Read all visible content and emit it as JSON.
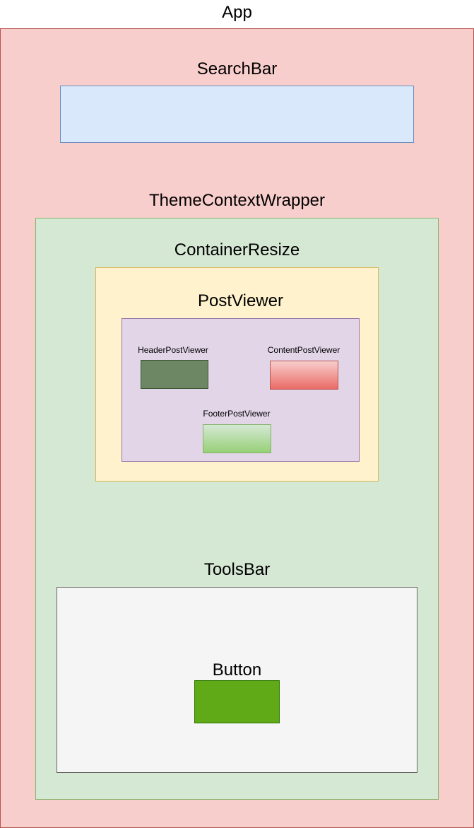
{
  "app": {
    "label": "App"
  },
  "searchbar": {
    "label": "SearchBar"
  },
  "theme_context_wrapper": {
    "label": "ThemeContextWrapper"
  },
  "container_resize": {
    "label": "ContainerResize"
  },
  "post_viewer": {
    "label": "PostViewer",
    "header": {
      "label": "HeaderPostViewer"
    },
    "content": {
      "label": "ContentPostViewer"
    },
    "footer": {
      "label": "FooterPostViewer"
    }
  },
  "tools_bar": {
    "label": "ToolsBar"
  },
  "button": {
    "label": "Button"
  },
  "colors": {
    "app_fill": "#f8cecc",
    "searchbar_fill": "#dae8fc",
    "theme_fill": "#d5e8d4",
    "container_fill": "#fff2cc",
    "postviewer_fill": "#e1d5e7",
    "header_fill": "#6d8764",
    "content_fill": "#ea6b66",
    "footer_fill": "#97d077",
    "toolsbar_fill": "#f5f5f5",
    "button_fill": "#60a917"
  }
}
